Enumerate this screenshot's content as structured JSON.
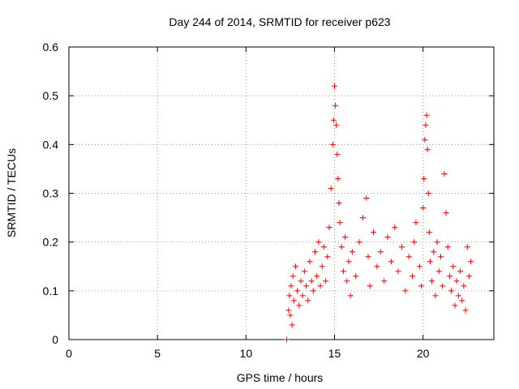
{
  "chart_data": {
    "type": "scatter",
    "title": "Day 244 of 2014, SRMTID for receiver p623",
    "xlabel": "GPS time / hours",
    "ylabel": "SRMTID / TECUs",
    "xlim": [
      0,
      24
    ],
    "ylim": [
      0,
      0.6
    ],
    "xticks": [
      0,
      5,
      10,
      15,
      20
    ],
    "xtick_labels": [
      "0",
      "5",
      "10",
      "15",
      "20"
    ],
    "yticks": [
      0,
      0.1,
      0.2,
      0.3,
      0.4,
      0.5,
      0.6
    ],
    "ytick_labels": [
      "0",
      "0.1",
      "0.2",
      "0.3",
      "0.4",
      "0.5",
      "0.6"
    ],
    "grid": true,
    "marker": "plus",
    "color": "#ff0000",
    "series": [
      {
        "name": "SRMTID",
        "x": [
          12.3,
          12.4,
          12.45,
          12.5,
          12.55,
          12.6,
          12.65,
          12.7,
          12.8,
          12.9,
          13.0,
          13.1,
          13.2,
          13.3,
          13.4,
          13.5,
          13.6,
          13.7,
          13.8,
          13.9,
          14.0,
          14.1,
          14.2,
          14.3,
          14.4,
          14.5,
          14.6,
          14.7,
          14.8,
          14.9,
          14.95,
          15.0,
          15.05,
          15.1,
          15.15,
          15.2,
          15.25,
          15.3,
          15.4,
          15.5,
          15.6,
          15.7,
          15.8,
          15.9,
          16.0,
          16.2,
          16.4,
          16.6,
          16.8,
          16.9,
          17.0,
          17.2,
          17.4,
          17.6,
          17.8,
          18.0,
          18.2,
          18.4,
          18.6,
          18.8,
          19.0,
          19.2,
          19.4,
          19.5,
          19.6,
          19.8,
          19.9,
          20.0,
          20.05,
          20.1,
          20.15,
          20.2,
          20.25,
          20.3,
          20.35,
          20.4,
          20.5,
          20.6,
          20.7,
          20.8,
          20.9,
          21.0,
          21.1,
          21.2,
          21.3,
          21.4,
          21.5,
          21.6,
          21.7,
          21.8,
          21.9,
          22.0,
          22.1,
          22.2,
          22.3,
          22.4,
          22.5,
          22.6,
          22.7
        ],
        "y": [
          0.0,
          0.06,
          0.09,
          0.05,
          0.11,
          0.03,
          0.13,
          0.08,
          0.15,
          0.1,
          0.07,
          0.12,
          0.09,
          0.14,
          0.11,
          0.08,
          0.16,
          0.12,
          0.1,
          0.18,
          0.13,
          0.2,
          0.11,
          0.15,
          0.19,
          0.12,
          0.17,
          0.23,
          0.31,
          0.4,
          0.45,
          0.52,
          0.48,
          0.44,
          0.38,
          0.33,
          0.28,
          0.24,
          0.19,
          0.14,
          0.21,
          0.12,
          0.16,
          0.09,
          0.18,
          0.13,
          0.2,
          0.25,
          0.29,
          0.17,
          0.11,
          0.22,
          0.15,
          0.18,
          0.12,
          0.21,
          0.16,
          0.23,
          0.14,
          0.19,
          0.1,
          0.17,
          0.13,
          0.2,
          0.24,
          0.15,
          0.11,
          0.27,
          0.33,
          0.41,
          0.44,
          0.46,
          0.39,
          0.3,
          0.22,
          0.16,
          0.12,
          0.18,
          0.09,
          0.2,
          0.14,
          0.17,
          0.11,
          0.34,
          0.26,
          0.19,
          0.13,
          0.1,
          0.15,
          0.07,
          0.12,
          0.09,
          0.14,
          0.08,
          0.11,
          0.06,
          0.19,
          0.13,
          0.16
        ]
      }
    ]
  }
}
